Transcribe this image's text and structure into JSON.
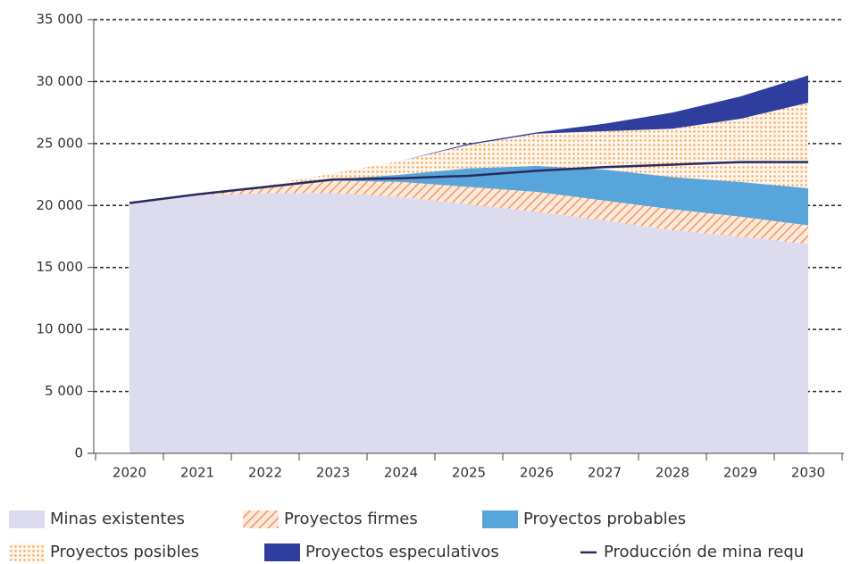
{
  "chart_data": {
    "type": "stacked_area",
    "categories": [
      "2020",
      "2021",
      "2022",
      "2023",
      "2024",
      "2025",
      "2026",
      "2027",
      "2028",
      "2029",
      "2030"
    ],
    "series": [
      {
        "name": "Minas existentes",
        "color": "#dcdcee",
        "values": [
          20200,
          20800,
          21000,
          21000,
          20700,
          20100,
          19500,
          18800,
          18000,
          17500,
          16900
        ]
      },
      {
        "name": "Proyectos firmes",
        "color": "#f09a66",
        "pattern": "hatch",
        "values": [
          0,
          100,
          400,
          1000,
          1200,
          1400,
          1600,
          1600,
          1700,
          1600,
          1500
        ]
      },
      {
        "name": "Proyectos probables",
        "color": "#58a5db",
        "values": [
          0,
          0,
          100,
          100,
          600,
          1500,
          2100,
          2500,
          2600,
          2800,
          3000
        ]
      },
      {
        "name": "Proyectos posibles",
        "color": "#f5a55a",
        "pattern": "dots",
        "values": [
          0,
          0,
          100,
          500,
          1100,
          1900,
          2600,
          3100,
          3900,
          5100,
          6900
        ]
      },
      {
        "name": "Proyectos especulativos",
        "color": "#2e3d9e",
        "values": [
          0,
          0,
          0,
          0,
          0,
          100,
          100,
          600,
          1300,
          1800,
          2200
        ]
      }
    ],
    "line": {
      "name": "Producción de mina requ",
      "color": "#2a2a60",
      "values": [
        20200,
        20900,
        21500,
        22100,
        22200,
        22400,
        22800,
        23100,
        23300,
        23500,
        23500
      ]
    },
    "ylim": [
      0,
      35000
    ],
    "yticks": [
      0,
      {
        "value": 5000,
        "label": "5 000"
      },
      {
        "value": 10000,
        "label": "10 000"
      },
      {
        "value": 15000,
        "label": "15 000"
      },
      {
        "value": 20000,
        "label": "20 000"
      },
      {
        "value": 25000,
        "label": "25 000"
      },
      {
        "value": 30000,
        "label": "30 000"
      },
      {
        "value": 35000,
        "label": "35 000"
      }
    ],
    "grid": true
  }
}
